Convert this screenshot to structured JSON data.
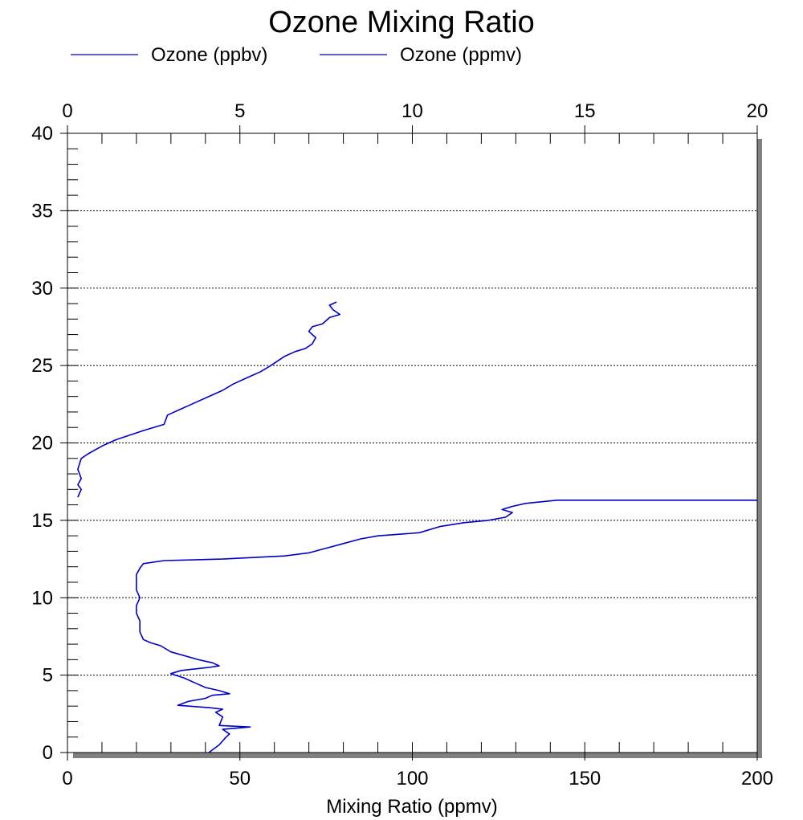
{
  "chart_data": {
    "type": "line",
    "title": "Ozone Mixing Ratio",
    "xlabel": "Mixing Ratio (ppmv)",
    "ylabel": "",
    "x_bottom": {
      "lim": [
        0,
        200
      ],
      "ticks": [
        "0",
        "50",
        "100",
        "150",
        "200"
      ]
    },
    "x_top": {
      "lim": [
        0,
        20
      ],
      "ticks": [
        "0",
        "5",
        "10",
        "15",
        "20"
      ]
    },
    "y": {
      "lim": [
        0,
        40
      ],
      "ticks": [
        "0",
        "5",
        "10",
        "15",
        "20",
        "25",
        "30",
        "35",
        "40"
      ]
    },
    "grid": "horizontal dotted",
    "legend": "top",
    "series": [
      {
        "name": "Ozone (ppbv)",
        "color": "#0000cc",
        "axis": "bottom",
        "points": [
          [
            41,
            0
          ],
          [
            44,
            0.5
          ],
          [
            46,
            1.0
          ],
          [
            47,
            1.2
          ],
          [
            45,
            1.5
          ],
          [
            53,
            1.65
          ],
          [
            44,
            1.75
          ],
          [
            45,
            2.3
          ],
          [
            43,
            2.6
          ],
          [
            45,
            2.8
          ],
          [
            41,
            2.9
          ],
          [
            32,
            3.05
          ],
          [
            35,
            3.3
          ],
          [
            40,
            3.5
          ],
          [
            42,
            3.7
          ],
          [
            47,
            3.8
          ],
          [
            44,
            4.0
          ],
          [
            40,
            4.2
          ],
          [
            37,
            4.5
          ],
          [
            34,
            4.8
          ],
          [
            30,
            5.1
          ],
          [
            33,
            5.3
          ],
          [
            41,
            5.5
          ],
          [
            44,
            5.6
          ],
          [
            42,
            5.8
          ],
          [
            38,
            6.0
          ],
          [
            30,
            6.5
          ],
          [
            27,
            6.9
          ],
          [
            24,
            7.1
          ],
          [
            22,
            7.3
          ],
          [
            21,
            7.8
          ],
          [
            21,
            8.5
          ],
          [
            20,
            9.0
          ],
          [
            20,
            9.5
          ],
          [
            21,
            10.0
          ],
          [
            20,
            10.5
          ],
          [
            20,
            11.0
          ],
          [
            20,
            11.5
          ],
          [
            21,
            11.9
          ],
          [
            22,
            12.2
          ],
          [
            28,
            12.4
          ],
          [
            45,
            12.5
          ],
          [
            63,
            12.7
          ],
          [
            70,
            12.9
          ],
          [
            75,
            13.2
          ],
          [
            80,
            13.5
          ],
          [
            85,
            13.8
          ],
          [
            90,
            14.0
          ],
          [
            102,
            14.2
          ],
          [
            108,
            14.6
          ],
          [
            115,
            14.85
          ],
          [
            122,
            15.0
          ],
          [
            127,
            15.2
          ],
          [
            129,
            15.5
          ],
          [
            126,
            15.7
          ],
          [
            129,
            15.9
          ],
          [
            133,
            16.1
          ],
          [
            142,
            16.3
          ],
          [
            200,
            16.3
          ]
        ]
      },
      {
        "name": "Ozone (ppmv)",
        "color": "#0000cc",
        "axis": "top",
        "points": [
          [
            0.3,
            16.5
          ],
          [
            0.4,
            17.0
          ],
          [
            0.3,
            17.3
          ],
          [
            0.4,
            17.7
          ],
          [
            0.3,
            18.3
          ],
          [
            0.4,
            19.0
          ],
          [
            0.6,
            19.3
          ],
          [
            1.0,
            19.8
          ],
          [
            1.4,
            20.2
          ],
          [
            1.8,
            20.5
          ],
          [
            2.2,
            20.8
          ],
          [
            2.8,
            21.2
          ],
          [
            2.9,
            21.8
          ],
          [
            3.3,
            22.2
          ],
          [
            3.6,
            22.5
          ],
          [
            4.0,
            22.9
          ],
          [
            4.5,
            23.4
          ],
          [
            4.8,
            23.8
          ],
          [
            5.2,
            24.2
          ],
          [
            5.6,
            24.6
          ],
          [
            5.9,
            25.0
          ],
          [
            6.1,
            25.3
          ],
          [
            6.3,
            25.6
          ],
          [
            6.6,
            25.9
          ],
          [
            6.9,
            26.1
          ],
          [
            7.1,
            26.4
          ],
          [
            7.2,
            26.8
          ],
          [
            7.0,
            27.2
          ],
          [
            7.1,
            27.5
          ],
          [
            7.4,
            27.7
          ],
          [
            7.6,
            28.1
          ],
          [
            7.9,
            28.3
          ],
          [
            7.7,
            28.6
          ],
          [
            7.6,
            28.9
          ],
          [
            7.8,
            29.1
          ]
        ]
      }
    ]
  }
}
